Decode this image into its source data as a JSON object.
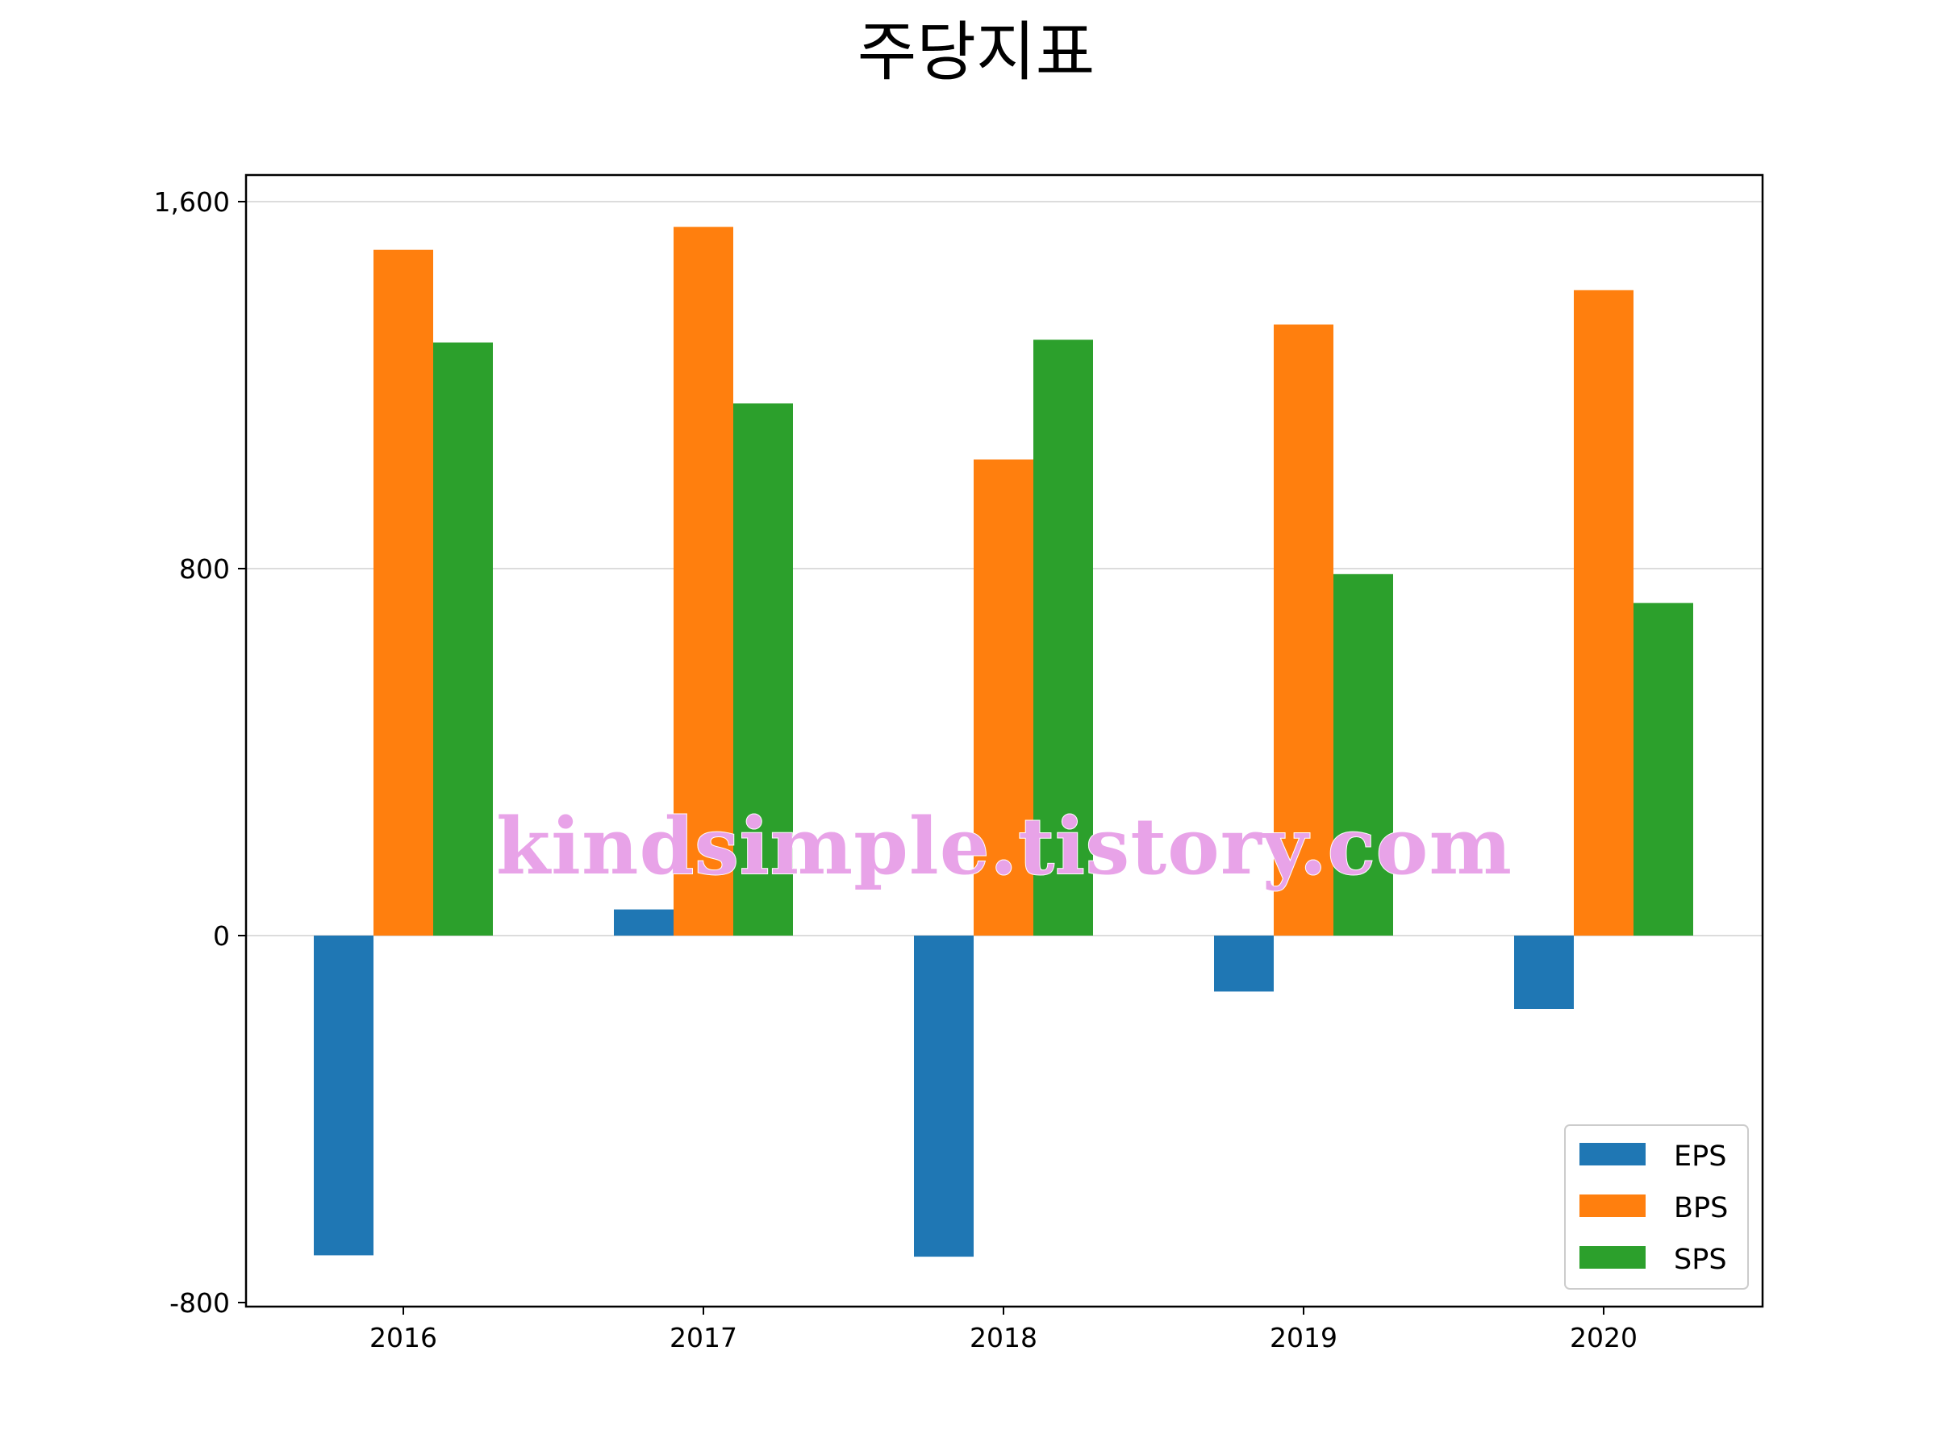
{
  "chart_data": {
    "type": "bar",
    "title": "주당지표",
    "xlabel": "",
    "ylabel": "",
    "categories": [
      "2016",
      "2017",
      "2018",
      "2019",
      "2020"
    ],
    "series": [
      {
        "name": "EPS",
        "color": "#1f77b4",
        "values": [
          -697,
          57,
          -700,
          -122,
          -160
        ]
      },
      {
        "name": "BPS",
        "color": "#ff7f0e",
        "values": [
          1495,
          1545,
          1038,
          1332,
          1407
        ]
      },
      {
        "name": "SPS",
        "color": "#2ca02c",
        "values": [
          1293,
          1160,
          1299,
          788,
          725
        ]
      }
    ],
    "ylim": [
      -800,
      1600
    ],
    "yticks": [
      -800,
      0,
      800,
      1600
    ],
    "ytick_labels": [
      "-800",
      "0",
      "800",
      "1,600"
    ],
    "grid": true,
    "legend": {
      "position": "bottom-right",
      "entries": [
        "EPS",
        "BPS",
        "SPS"
      ]
    },
    "watermark": "kindsimple.tistory.com"
  }
}
